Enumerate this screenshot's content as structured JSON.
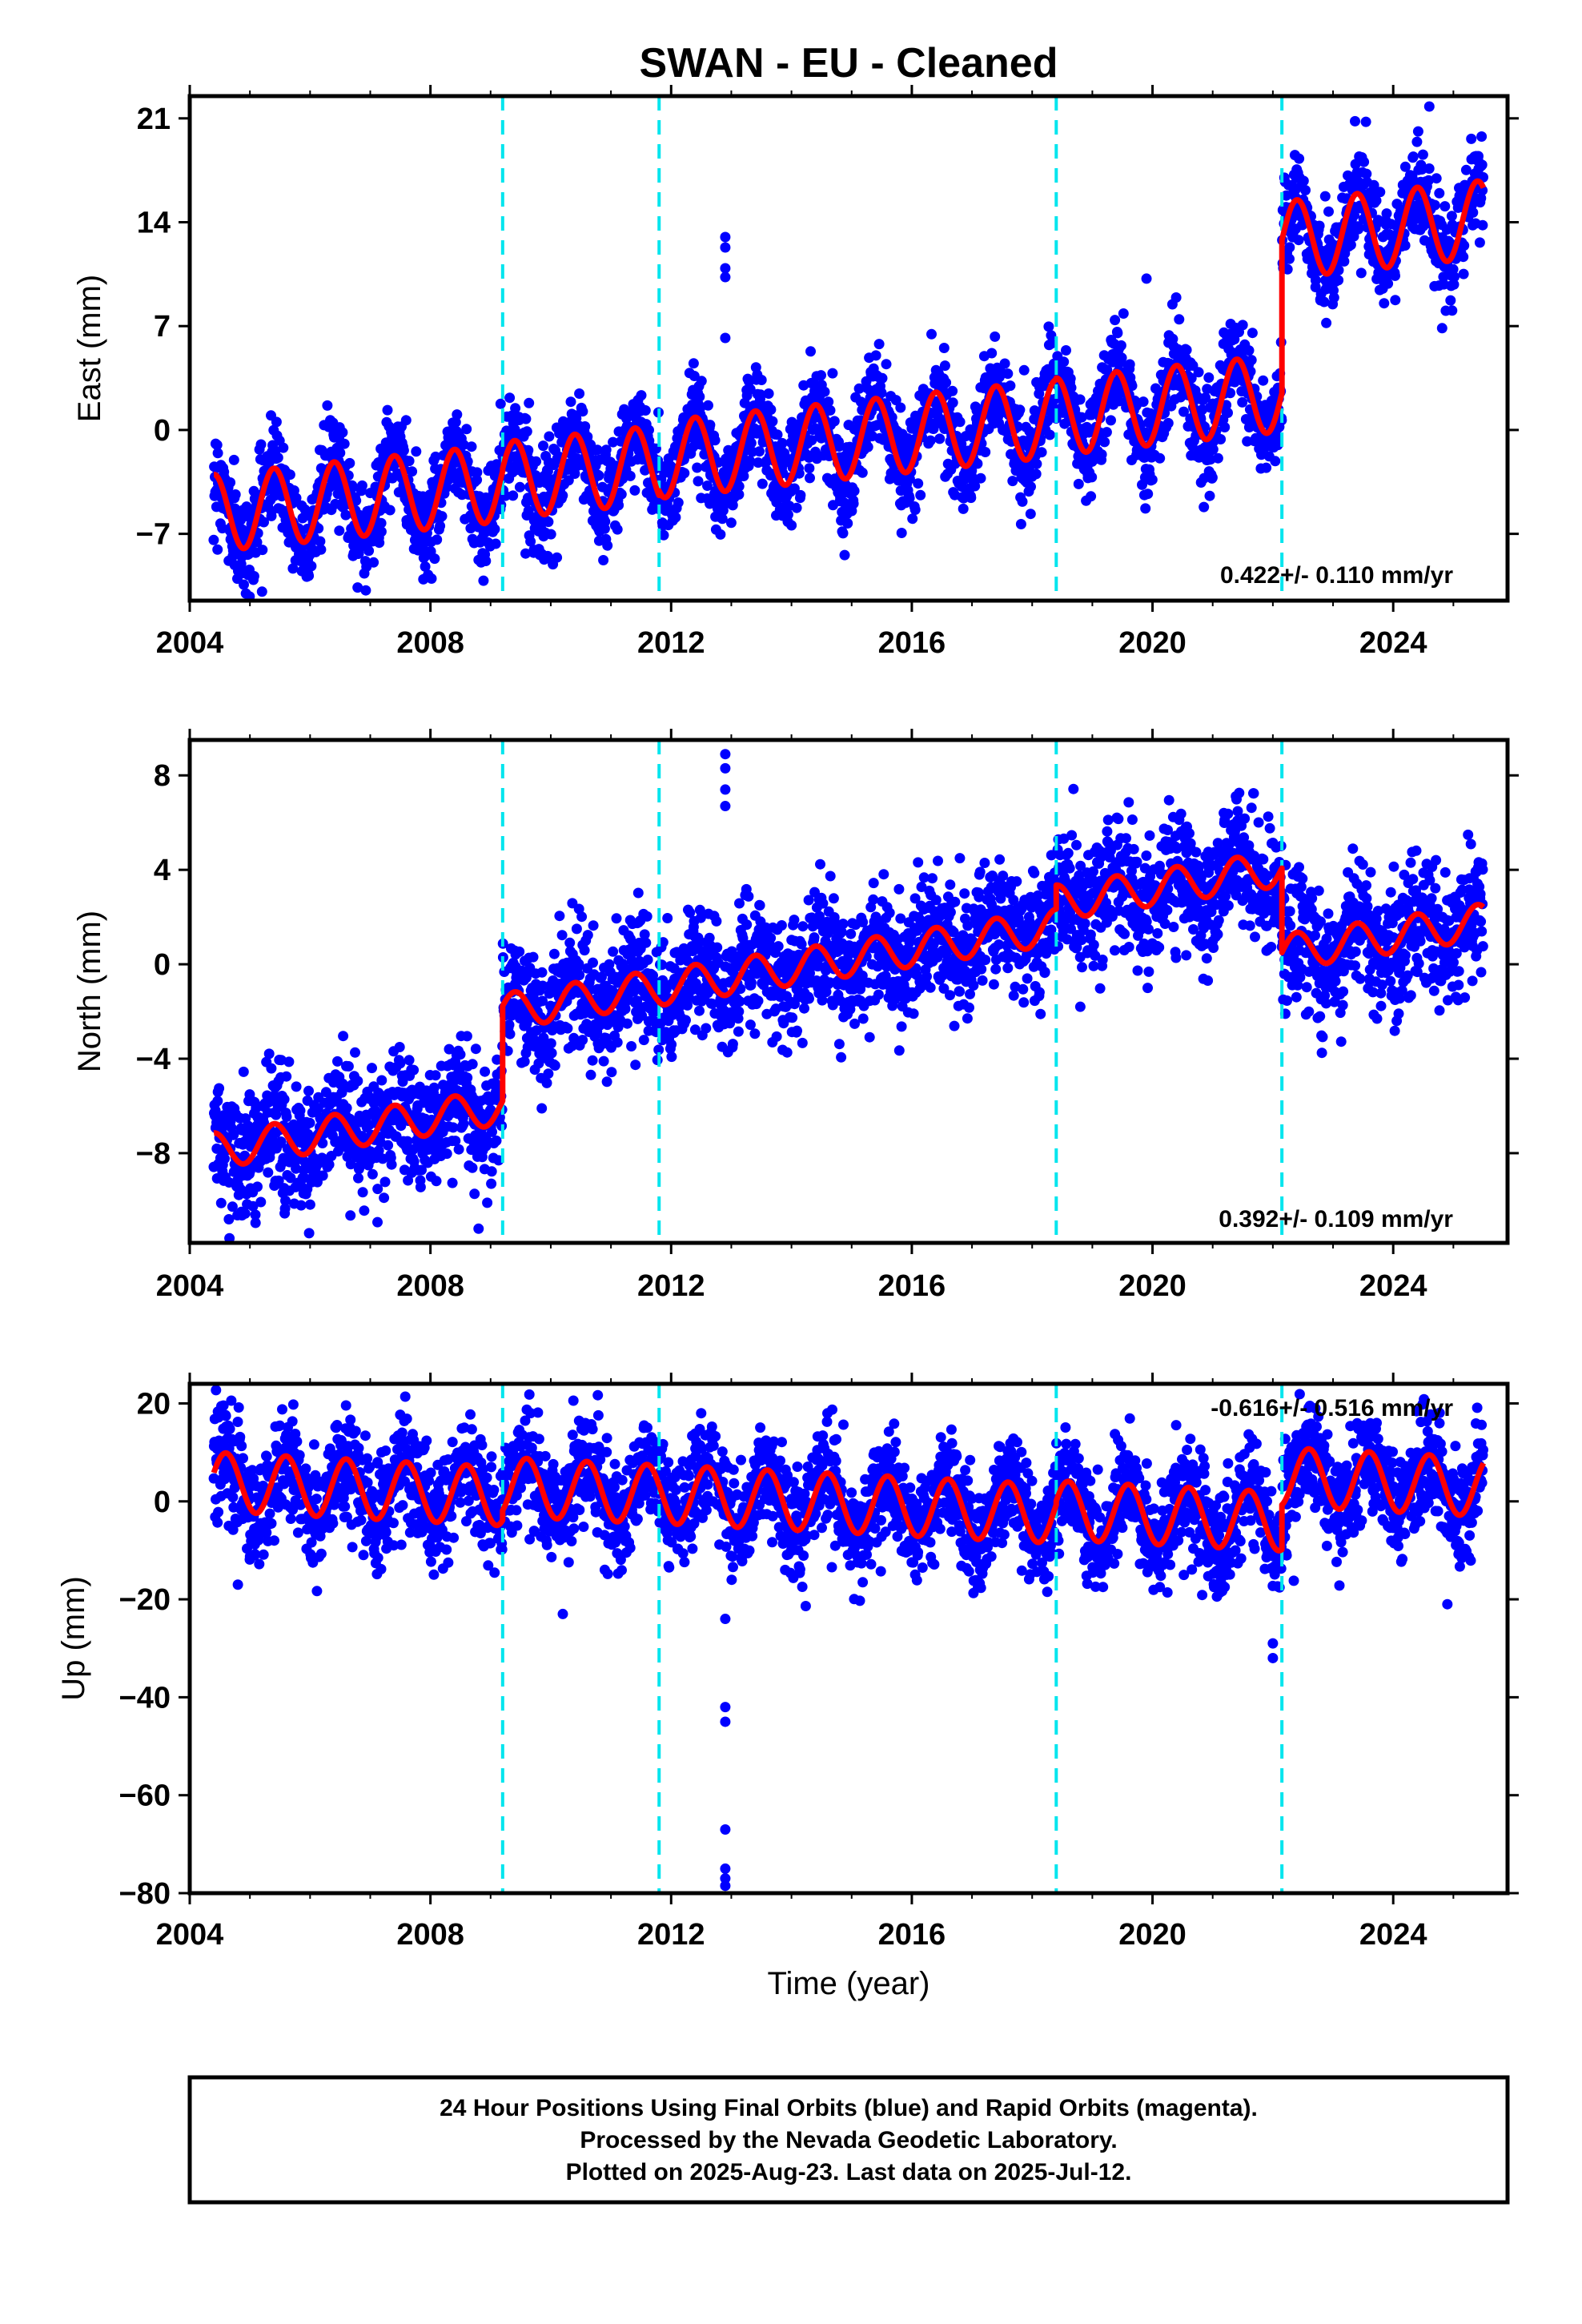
{
  "title": "SWAN  - EU - Cleaned",
  "x_axis_label": "Time (year)",
  "footer": {
    "line1": "24 Hour Positions Using Final Orbits (blue) and Rapid Orbits (magenta).",
    "line2": "Processed by the Nevada Geodetic Laboratory.",
    "line3": "Plotted on 2025-Aug-23. Last data on 2025-Jul-12."
  },
  "colors": {
    "points": "#0000ff",
    "model": "#ff0000",
    "break_lines": "#00e5ee",
    "frame": "#000000"
  },
  "chart_data": [
    {
      "type": "scatter",
      "ylabel": "East (mm)",
      "xlabel": "",
      "rate": "0.422+/- 0.110 mm/yr",
      "xlim": [
        2004.0,
        2025.9
      ],
      "ylim": [
        -11.5,
        22.5
      ],
      "xticks": [
        "2004",
        "2008",
        "2012",
        "2016",
        "2020",
        "2024"
      ],
      "xtick_values": [
        2004,
        2008,
        2012,
        2016,
        2020,
        2024
      ],
      "yticks": [
        "21",
        "14",
        "7",
        "0",
        "-7"
      ],
      "ytick_values": [
        21,
        14,
        7,
        0,
        -7
      ],
      "data_span": [
        2004.4,
        2025.5
      ],
      "breaks": [
        2009.2,
        2011.8,
        2018.4,
        2022.15
      ],
      "model": {
        "segments": [
          {
            "start": 2004.4,
            "end": 2009.2,
            "offset": -5.6,
            "slope": 0.422,
            "t0": 2004.4
          },
          {
            "start": 2009.2,
            "end": 2011.8,
            "offset": -3.4,
            "slope": 0.422,
            "t0": 2009.2
          },
          {
            "start": 2011.8,
            "end": 2018.4,
            "offset": -2.0,
            "slope": 0.422,
            "t0": 2011.8
          },
          {
            "start": 2018.4,
            "end": 2022.15,
            "offset": 0.9,
            "slope": 0.422,
            "t0": 2018.4
          },
          {
            "start": 2022.15,
            "end": 2025.5,
            "offset": 12.8,
            "slope": 0.422,
            "t0": 2022.15
          }
        ],
        "annual_amplitude": 2.6,
        "annual_phase": 0.15
      },
      "scatter_spread": 1.6,
      "outliers": [
        {
          "x": 2012.9,
          "y": 13.0
        },
        {
          "x": 2012.9,
          "y": 12.3
        },
        {
          "x": 2012.9,
          "y": 10.9
        },
        {
          "x": 2012.9,
          "y": 10.3
        },
        {
          "x": 2012.9,
          "y": 6.2
        },
        {
          "x": 2019.9,
          "y": 10.2
        },
        {
          "x": 2024.6,
          "y": 21.8
        }
      ]
    },
    {
      "type": "scatter",
      "ylabel": "North (mm)",
      "xlabel": "",
      "rate": "0.392+/- 0.109 mm/yr",
      "xlim": [
        2004.0,
        2025.9
      ],
      "ylim": [
        -11.8,
        9.5
      ],
      "xticks": [
        "2004",
        "2008",
        "2012",
        "2016",
        "2020",
        "2024"
      ],
      "xtick_values": [
        2004,
        2008,
        2012,
        2016,
        2020,
        2024
      ],
      "yticks": [
        "8",
        "4",
        "0",
        "-4",
        "-8"
      ],
      "ytick_values": [
        8,
        4,
        0,
        -4,
        -8
      ],
      "data_span": [
        2004.4,
        2025.5
      ],
      "breaks": [
        2009.2,
        2011.8,
        2018.4,
        2022.15
      ],
      "model": {
        "segments": [
          {
            "start": 2004.4,
            "end": 2009.2,
            "offset": -7.9,
            "slope": 0.392,
            "t0": 2004.4
          },
          {
            "start": 2009.2,
            "end": 2011.8,
            "offset": -2.0,
            "slope": 0.392,
            "t0": 2009.2
          },
          {
            "start": 2011.8,
            "end": 2018.4,
            "offset": -1.0,
            "slope": 0.392,
            "t0": 2011.8
          },
          {
            "start": 2018.4,
            "end": 2022.15,
            "offset": 2.6,
            "slope": 0.392,
            "t0": 2018.4
          },
          {
            "start": 2022.15,
            "end": 2025.5,
            "offset": 0.5,
            "slope": 0.392,
            "t0": 2022.15
          }
        ],
        "annual_amplitude": 0.75,
        "annual_phase": 0.15
      },
      "scatter_spread": 1.3,
      "outliers": [
        {
          "x": 2012.9,
          "y": 8.9
        },
        {
          "x": 2012.9,
          "y": 8.3
        },
        {
          "x": 2012.9,
          "y": 7.4
        },
        {
          "x": 2012.9,
          "y": 6.7
        },
        {
          "x": 2008.8,
          "y": -11.2
        },
        {
          "x": 2018.8,
          "y": -1.8
        }
      ]
    },
    {
      "type": "scatter",
      "ylabel": "Up (mm)",
      "xlabel": "Time (year)",
      "rate": "-0.616+/- 0.516 mm/yr",
      "xlim": [
        2004.0,
        2025.9
      ],
      "ylim": [
        -80,
        24
      ],
      "xticks": [
        "2004",
        "2008",
        "2012",
        "2016",
        "2020",
        "2024"
      ],
      "xtick_values": [
        2004,
        2008,
        2012,
        2016,
        2020,
        2024
      ],
      "yticks": [
        "20",
        "0",
        "-20",
        "-40",
        "-60",
        "-80"
      ],
      "ytick_values": [
        20,
        0,
        -20,
        -40,
        -60,
        -80
      ],
      "data_span": [
        2004.4,
        2025.5
      ],
      "breaks": [
        2009.2,
        2011.8,
        2018.4,
        2022.15
      ],
      "model": {
        "segments": [
          {
            "start": 2004.4,
            "end": 2009.2,
            "offset": 4.0,
            "slope": -0.616,
            "t0": 2004.4
          },
          {
            "start": 2009.2,
            "end": 2011.8,
            "offset": 3.0,
            "slope": -0.616,
            "t0": 2009.2
          },
          {
            "start": 2011.8,
            "end": 2018.4,
            "offset": 1.5,
            "slope": -0.616,
            "t0": 2011.8
          },
          {
            "start": 2018.4,
            "end": 2022.15,
            "offset": -1.8,
            "slope": -0.616,
            "t0": 2018.4
          },
          {
            "start": 2022.15,
            "end": 2025.5,
            "offset": 5.0,
            "slope": -0.616,
            "t0": 2022.15
          }
        ],
        "annual_amplitude": 6.0,
        "annual_phase": 0.35
      },
      "scatter_spread": 5.5,
      "outliers": [
        {
          "x": 2012.9,
          "y": -42.0
        },
        {
          "x": 2012.9,
          "y": -45.0
        },
        {
          "x": 2012.9,
          "y": -67.0
        },
        {
          "x": 2012.9,
          "y": -75.0
        },
        {
          "x": 2012.9,
          "y": -77.0
        },
        {
          "x": 2012.9,
          "y": -78.5
        },
        {
          "x": 2012.9,
          "y": -24.0
        },
        {
          "x": 2010.2,
          "y": -23.0
        },
        {
          "x": 2022.0,
          "y": -32.0
        },
        {
          "x": 2022.0,
          "y": -29.0
        },
        {
          "x": 2024.9,
          "y": -21.0
        },
        {
          "x": 2004.8,
          "y": -17.0
        }
      ]
    }
  ]
}
